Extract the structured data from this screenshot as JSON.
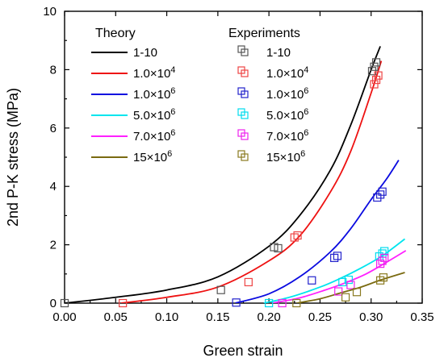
{
  "chart_data": {
    "type": "scatter",
    "xlabel": "Green strain",
    "ylabel": "2nd P-K stress (MPa)",
    "xlim": [
      0.0,
      0.35
    ],
    "ylim": [
      0,
      10
    ],
    "x_ticks": [
      0.0,
      0.05,
      0.1,
      0.15,
      0.2,
      0.25,
      0.3,
      0.35
    ],
    "x_tick_labels": [
      "0.00",
      "0.05",
      "0.10",
      "0.15",
      "0.20",
      "0.25",
      "0.30",
      "0.35"
    ],
    "y_ticks": [
      0,
      2,
      4,
      6,
      8,
      10
    ],
    "y_tick_labels": [
      "0",
      "2",
      "4",
      "6",
      "8",
      "10"
    ],
    "grid": false,
    "legend_placement": "top-left",
    "legend": {
      "theory_title": "Theory",
      "experiments_title": "Experiments"
    },
    "theory": [
      {
        "label": "1-10",
        "base": "1-10",
        "sup": "",
        "color": "#000000",
        "x": [
          0.0,
          0.05,
          0.1,
          0.15,
          0.2,
          0.23,
          0.26,
          0.28,
          0.3,
          0.309
        ],
        "y": [
          0.0,
          0.2,
          0.45,
          0.9,
          1.95,
          3.0,
          4.55,
          6.1,
          8.0,
          8.8
        ]
      },
      {
        "label": "1.0×10^4",
        "base": "1.0×10",
        "sup": "4",
        "color": "#ee1111",
        "x": [
          0.055,
          0.1,
          0.15,
          0.2,
          0.23,
          0.26,
          0.28,
          0.3,
          0.31
        ],
        "y": [
          0.0,
          0.2,
          0.55,
          1.45,
          2.3,
          3.8,
          5.2,
          7.2,
          8.3
        ]
      },
      {
        "label": "1.0×10^6",
        "base": "1.0×10",
        "sup": "6",
        "color": "#0a0ae0",
        "x": [
          0.167,
          0.2,
          0.23,
          0.26,
          0.28,
          0.3,
          0.315,
          0.327
        ],
        "y": [
          0.0,
          0.32,
          0.9,
          1.75,
          2.55,
          3.55,
          4.25,
          4.9
        ]
      },
      {
        "label": "5.0×10^6",
        "base": "5.0×10",
        "sup": "6",
        "color": "#00e5ee",
        "x": [
          0.195,
          0.22,
          0.25,
          0.27,
          0.29,
          0.31,
          0.32,
          0.333
        ],
        "y": [
          0.0,
          0.2,
          0.55,
          0.85,
          1.2,
          1.6,
          1.85,
          2.2
        ]
      },
      {
        "label": "7.0×10^6",
        "base": "7.0×10",
        "sup": "6",
        "color": "#ff20ff",
        "x": [
          0.203,
          0.23,
          0.255,
          0.275,
          0.295,
          0.315,
          0.334
        ],
        "y": [
          0.0,
          0.18,
          0.45,
          0.7,
          1.0,
          1.4,
          1.8
        ]
      },
      {
        "label": "15×10^6",
        "base": "15×10",
        "sup": "6",
        "color": "#7a6a10",
        "x": [
          0.227,
          0.25,
          0.27,
          0.29,
          0.31,
          0.333
        ],
        "y": [
          0.0,
          0.15,
          0.35,
          0.55,
          0.8,
          1.05
        ]
      }
    ],
    "experiments": [
      {
        "label": "1-10",
        "base": "1-10",
        "sup": "",
        "color": "#555555",
        "x": [
          0.0,
          0.153,
          0.205,
          0.209,
          0.301,
          0.303,
          0.305
        ],
        "y": [
          0.0,
          0.45,
          1.92,
          1.88,
          7.95,
          8.1,
          8.25
        ]
      },
      {
        "label": "1.0×10^4",
        "base": "1.0×10",
        "sup": "4",
        "color": "#ee4444",
        "x": [
          0.057,
          0.18,
          0.225,
          0.228,
          0.303,
          0.305,
          0.307
        ],
        "y": [
          0.0,
          0.72,
          2.25,
          2.32,
          7.5,
          7.65,
          7.8
        ]
      },
      {
        "label": "1.0×10^6",
        "base": "1.0×10",
        "sup": "6",
        "color": "#2222cc",
        "x": [
          0.168,
          0.242,
          0.264,
          0.267,
          0.306,
          0.309,
          0.311
        ],
        "y": [
          0.02,
          0.78,
          1.55,
          1.62,
          3.62,
          3.72,
          3.82
        ]
      },
      {
        "label": "5.0×10^6",
        "base": "5.0×10",
        "sup": "6",
        "color": "#00dcee",
        "x": [
          0.2,
          0.272,
          0.278,
          0.308,
          0.311,
          0.313
        ],
        "y": [
          0.0,
          0.72,
          0.8,
          1.6,
          1.7,
          1.78
        ]
      },
      {
        "label": "7.0×10^6",
        "base": "7.0×10",
        "sup": "6",
        "color": "#ee22ee",
        "x": [
          0.213,
          0.268,
          0.28,
          0.309,
          0.311,
          0.313
        ],
        "y": [
          0.0,
          0.4,
          0.62,
          1.35,
          1.45,
          1.55
        ]
      },
      {
        "label": "15×10^6",
        "base": "15×10",
        "sup": "6",
        "color": "#8a7a20",
        "x": [
          0.227,
          0.275,
          0.286,
          0.309,
          0.312
        ],
        "y": [
          0.0,
          0.2,
          0.38,
          0.78,
          0.88
        ]
      }
    ]
  }
}
